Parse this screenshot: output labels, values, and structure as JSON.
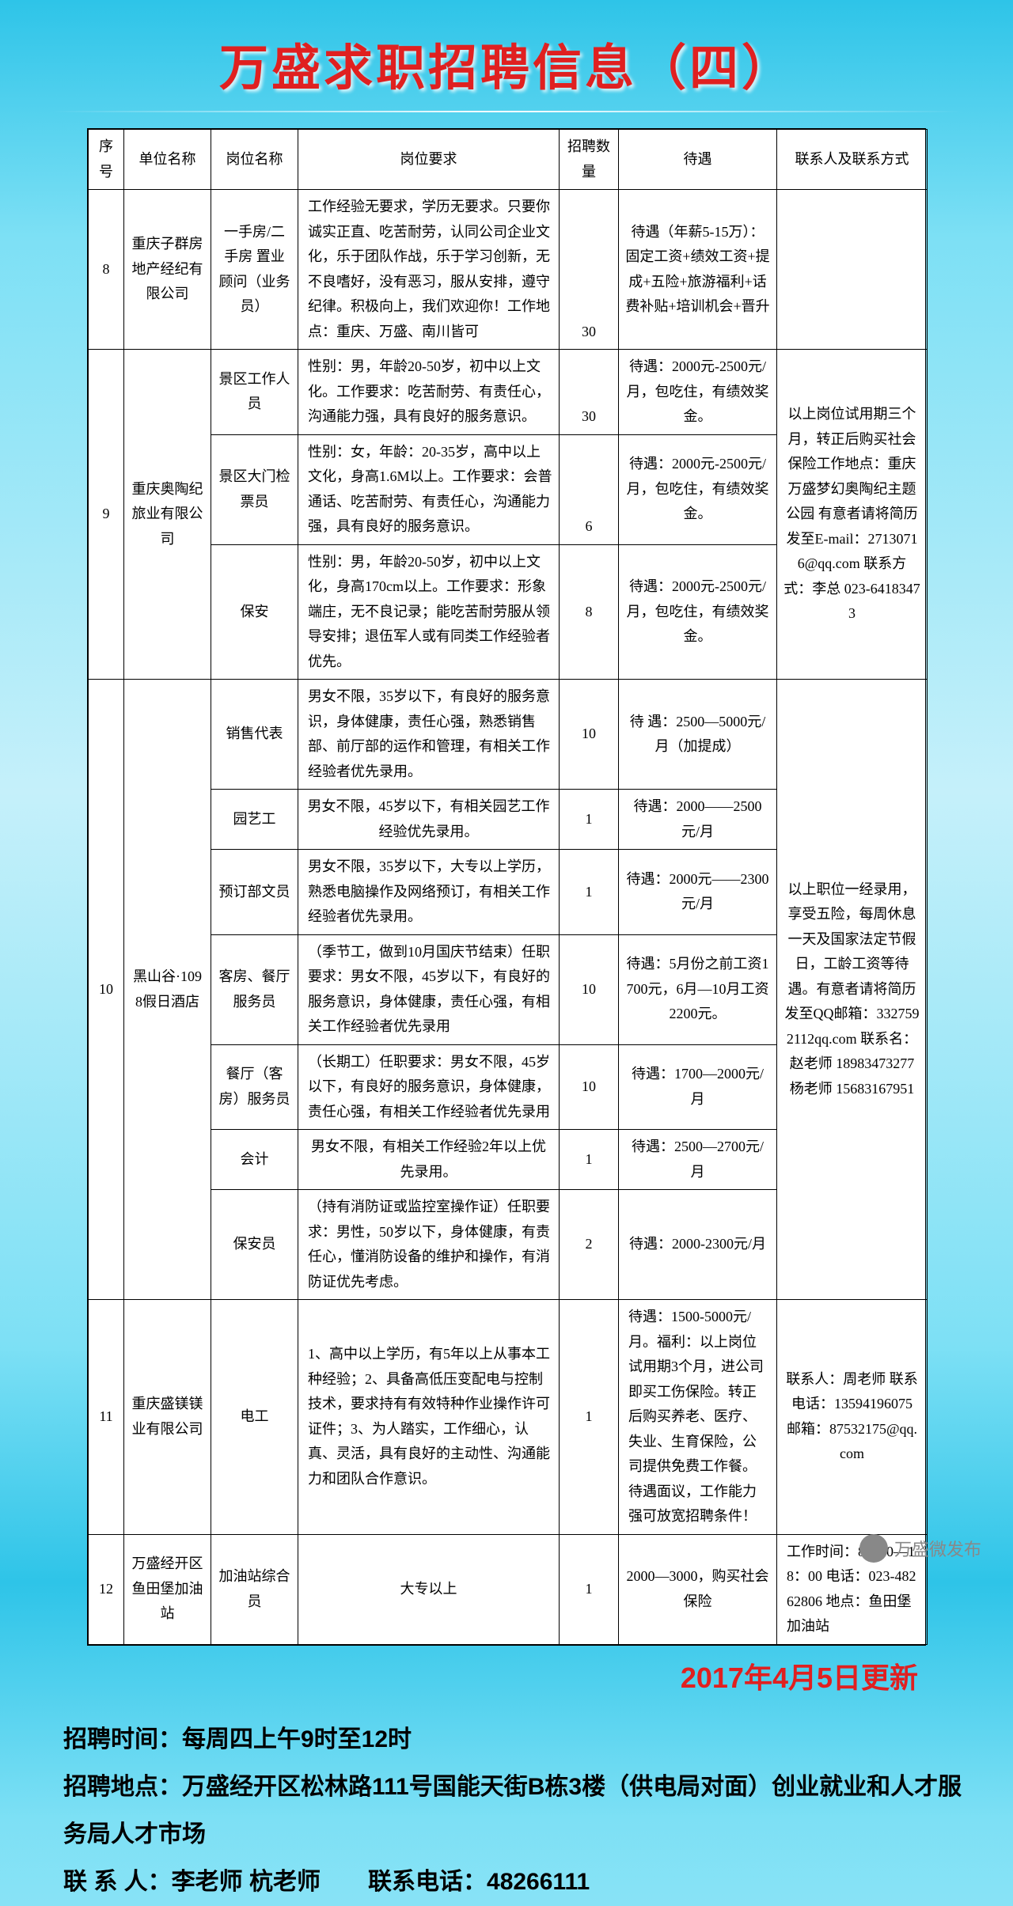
{
  "title": "万盛求职招聘信息（四）",
  "headers": [
    "序号",
    "单位名称",
    "岗位名称",
    "岗位要求",
    "招聘数量",
    "待遇",
    "联系人及联系方式"
  ],
  "rows": {
    "r8": {
      "seq": "8",
      "company": "重庆子群房地产经纪有限公司",
      "position": "一手房/二手房 置业顾问（业务员）",
      "req": "工作经验无要求，学历无要求。只要你诚实正直、吃苦耐劳，认同公司企业文化，乐于团队作战，乐于学习创新，无不良嗜好，没有恶习，服从安排，遵守纪律。积极向上，我们欢迎你！工作地点：重庆、万盛、南川皆可",
      "num": "30",
      "salary": "待遇（年薪5-15万）：固定工资+绩效工资+提成+五险+旅游福利+话费补贴+培训机会+晋升",
      "contact": ""
    },
    "r9": {
      "seq": "9",
      "company": "重庆奥陶纪旅业有限公司",
      "p1": {
        "pos": "景区工作人员",
        "req": "性别：男，年龄20-50岁，初中以上文化。工作要求：吃苦耐劳、有责任心，沟通能力强，具有良好的服务意识。",
        "num": "30",
        "sal": "待遇：2000元-2500元/月，包吃住，有绩效奖金。"
      },
      "p2": {
        "pos": "景区大门检票员",
        "req": "性别：女，年龄：20-35岁，高中以上文化，身高1.6M以上。工作要求：会普通话、吃苦耐劳、有责任心，沟通能力强，具有良好的服务意识。",
        "num": "6",
        "sal": "待遇：2000元-2500元/月，包吃住，有绩效奖金。"
      },
      "p3": {
        "pos": "保安",
        "req": "性别：男，年龄20-50岁，初中以上文化，身高170cm以上。工作要求：形象端庄，无不良记录；能吃苦耐劳服从领导安排；退伍军人或有同类工作经验者优先。",
        "num": "8",
        "sal": "待遇：2000元-2500元/月，包吃住，有绩效奖金。"
      },
      "contact": "以上岗位试用期三个月，转正后购买社会保险工作地点：重庆万盛梦幻奥陶纪主题公园 有意者请将简历发至E-mail：27130716@qq.com 联系方式：李总 023-64183473"
    },
    "r10": {
      "seq": "10",
      "company": "黑山谷·1098假日酒店",
      "p1": {
        "pos": "销售代表",
        "req": "男女不限，35岁以下，有良好的服务意识，身体健康，责任心强，熟悉销售部、前厅部的运作和管理，有相关工作经验者优先录用。",
        "num": "10",
        "sal": "待 遇：2500—5000元/月（加提成）"
      },
      "p2": {
        "pos": "园艺工",
        "req": "男女不限，45岁以下，有相关园艺工作经验优先录用。",
        "num": "1",
        "sal": "待遇：2000——2500元/月"
      },
      "p3": {
        "pos": "预订部文员",
        "req": "男女不限，35岁以下，大专以上学历，熟悉电脑操作及网络预订，有相关工作经验者优先录用。",
        "num": "1",
        "sal": "待遇：2000元——2300元/月"
      },
      "p4": {
        "pos": "客房、餐厅服务员",
        "req": "（季节工，做到10月国庆节结束）任职要求：男女不限，45岁以下，有良好的服务意识，身体健康，责任心强，有相关工作经验者优先录用",
        "num": "10",
        "sal": "待遇：5月份之前工资1700元，6月—10月工资2200元。"
      },
      "p5": {
        "pos": "餐厅（客房）服务员",
        "req": "（长期工）任职要求：男女不限，45岁以下，有良好的服务意识，身体健康，责任心强，有相关工作经验者优先录用",
        "num": "10",
        "sal": "待遇：1700—2000元/月"
      },
      "p6": {
        "pos": "会计",
        "req": "男女不限，有相关工作经验2年以上优先录用。",
        "num": "1",
        "sal": "待遇：2500—2700元/月"
      },
      "p7": {
        "pos": "保安员",
        "req": "（持有消防证或监控室操作证）任职要求：男性，50岁以下，身体健康，有责任心，懂消防设备的维护和操作，有消防证优先考虑。",
        "num": "2",
        "sal": "待遇：2000-2300元/月"
      },
      "contact": "以上职位一经录用，享受五险，每周休息一天及国家法定节假日，工龄工资等待遇。有意者请将简历发至QQ邮箱：3327592112qq.com 联系名：赵老师 18983473277 杨老师 15683167951"
    },
    "r11": {
      "seq": "11",
      "company": "重庆盛镁镁业有限公司",
      "position": "电工",
      "req": "1、高中以上学历，有5年以上从事本工种经验；2、具备高低压变配电与控制技术，要求持有有效特种作业操作许可证件；3、为人踏实，工作细心，认真、灵活，具有良好的主动性、沟通能力和团队合作意识。",
      "num": "1",
      "salary": "待遇：1500-5000元/月。福利：以上岗位试用期3个月，进公司即买工伤保险。转正后购买养老、医疗、失业、生育保险，公司提供免费工作餐。待遇面议，工作能力强可放宽招聘条件！",
      "contact": "联系人：周老师 联系电话：13594196075 邮箱：87532175@qq.com"
    },
    "r12": {
      "seq": "12",
      "company": "万盛经开区鱼田堡加油站",
      "position": "加油站综合员",
      "req": "大专以上",
      "num": "1",
      "salary": "2000—3000，购买社会保险",
      "contact": "工作时间：8：30—18：00 电话：023-48262806 地点：鱼田堡加油站"
    }
  },
  "update_date": "2017年4月5日更新",
  "footer": {
    "l1": "招聘时间：每周四上午9时至12时",
    "l2": "招聘地点：万盛经开区松林路111号国能天街B栋3楼（供电局对面）创业就业和人才服务局人才市场",
    "l3": "联 系 人：李老师 杭老师　　联系电话：48266111"
  },
  "watermark": "万盛微发布"
}
